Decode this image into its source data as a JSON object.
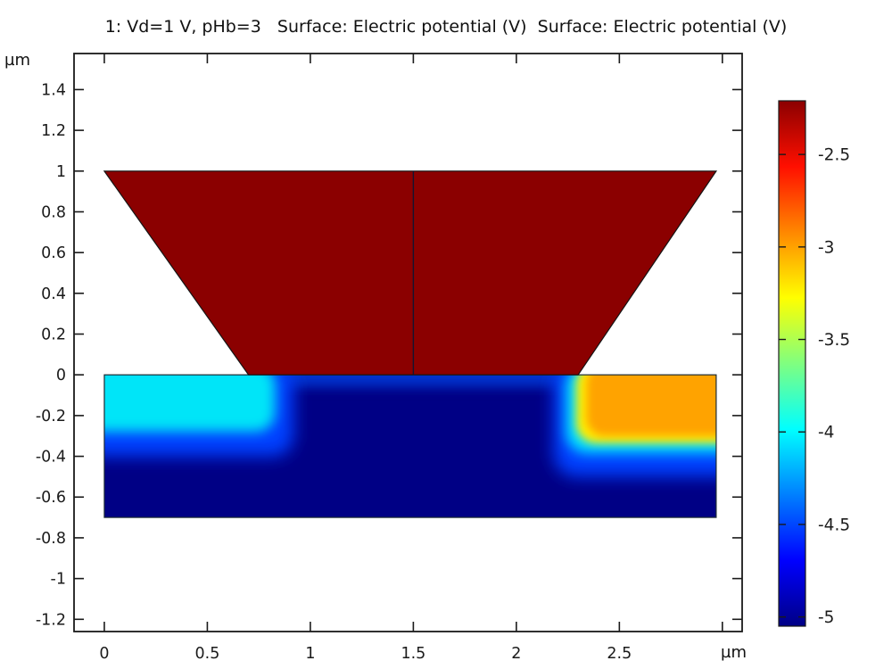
{
  "title": "1: Vd=1 V, pHb=3   Surface: Electric potential (V)  Surface: Electric potential (V)",
  "axes": {
    "x_unit": "µm",
    "y_unit": "µm",
    "x_range": [
      -0.147,
      3.096
    ],
    "y_range": [
      -1.26,
      1.577
    ],
    "x_ticks": [
      {
        "v": 0,
        "label": "0"
      },
      {
        "v": 0.5,
        "label": "0.5"
      },
      {
        "v": 1,
        "label": "1"
      },
      {
        "v": 1.5,
        "label": "1.5"
      },
      {
        "v": 2,
        "label": "2"
      },
      {
        "v": 2.5,
        "label": "2.5"
      },
      {
        "v": 3,
        "label": ""
      }
    ],
    "y_ticks": [
      {
        "v": 1.4,
        "label": "1.4"
      },
      {
        "v": 1.2,
        "label": "1.2"
      },
      {
        "v": 1,
        "label": "1"
      },
      {
        "v": 0.8,
        "label": "0.8"
      },
      {
        "v": 0.6,
        "label": "0.6"
      },
      {
        "v": 0.4,
        "label": "0.4"
      },
      {
        "v": 0.2,
        "label": "0.2"
      },
      {
        "v": 0,
        "label": "0"
      },
      {
        "v": -0.2,
        "label": "-0.2"
      },
      {
        "v": -0.4,
        "label": "-0.4"
      },
      {
        "v": -0.6,
        "label": "-0.6"
      },
      {
        "v": -0.8,
        "label": "-0.8"
      },
      {
        "v": -1,
        "label": "-1"
      },
      {
        "v": -1.2,
        "label": "-1.2"
      }
    ]
  },
  "chart_data": {
    "type": "heatmap",
    "title": "1: Vd=1 V, pHb=3   Surface: Electric potential (V)  Surface: Electric potential (V)",
    "quantity": "Electric potential (V)",
    "colormap": "jet",
    "color_range": [
      -5.05,
      -2.21
    ],
    "colorbar": {
      "position": "right",
      "ticks": [
        {
          "v": -2.5,
          "label": "-2.5"
        },
        {
          "v": -3,
          "label": "-3"
        },
        {
          "v": -3.5,
          "label": "-3.5"
        },
        {
          "v": -4,
          "label": "-4"
        },
        {
          "v": -4.5,
          "label": "-4.5"
        },
        {
          "v": -5,
          "label": "-5"
        }
      ],
      "gradient_stops_top_to_bottom": [
        [
          0,
          "#8b0000"
        ],
        [
          0.125,
          "#ff0f00"
        ],
        [
          0.375,
          "#ffff00"
        ],
        [
          0.625,
          "#00ffff"
        ],
        [
          0.875,
          "#0000ff"
        ],
        [
          1,
          "#000085"
        ]
      ]
    },
    "geometry": {
      "gate_trapezoid": {
        "vertices": [
          [
            0,
            1
          ],
          [
            2.97,
            1
          ],
          [
            2.3,
            0
          ],
          [
            0.7,
            0
          ]
        ],
        "color": "#8b0000",
        "value_V": -2.2,
        "outline": "#141414"
      },
      "center_divider": {
        "from": [
          1.5,
          0
        ],
        "to": [
          1.5,
          1
        ],
        "color": "#141430"
      },
      "substrate": {
        "x": [
          0,
          2.97
        ],
        "y": [
          -0.7,
          0
        ],
        "base_color": "#000085",
        "base_value_V": -5.0,
        "outline": "#1d2b33"
      },
      "field_layers": [
        {
          "name": "gate-surface-strip",
          "rect": [
            0.78,
            -0.06,
            2.32,
            0.05
          ],
          "color": "#0030cc",
          "blur": 6,
          "round": 0
        },
        {
          "name": "left-blue-halo",
          "rect": [
            -0.12,
            -0.4,
            0.92,
            0.05
          ],
          "color": "#0040ff",
          "blur": 9,
          "round": 24
        },
        {
          "name": "left-cyan-region",
          "rect": [
            -0.12,
            -0.28,
            0.83,
            0.05
          ],
          "color": "#00e5f8",
          "blur": 7,
          "round": 22,
          "value_V": -4.0
        },
        {
          "name": "right-blue-halo",
          "rect": [
            2.18,
            -0.5,
            3.1,
            0.05
          ],
          "color": "#0040ff",
          "blur": 9,
          "round": 26
        },
        {
          "name": "right-cyan-band",
          "rect": [
            2.24,
            -0.385,
            3.1,
            0.05
          ],
          "color": "#00e0ff",
          "blur": 7,
          "round": 24
        },
        {
          "name": "right-yellow-fringe",
          "rect": [
            2.29,
            -0.335,
            3.1,
            0.05
          ],
          "color": "#ffee00",
          "blur": 5,
          "round": 22
        },
        {
          "name": "right-orange-region",
          "rect": [
            2.34,
            -0.3,
            3.1,
            0.05
          ],
          "color": "#ffa300",
          "blur": 5,
          "round": 20,
          "value_V": -3.0
        }
      ]
    }
  }
}
